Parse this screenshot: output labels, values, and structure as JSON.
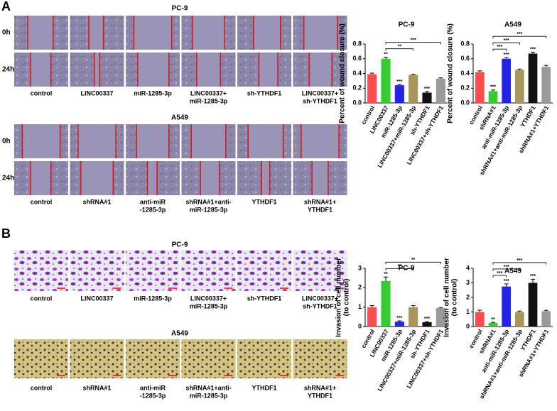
{
  "panels": [
    {
      "label": "A",
      "groups": [
        {
          "title": "PC-9",
          "rows": [
            "0h",
            "24h"
          ],
          "captions": [
            [
              "control"
            ],
            [
              "LINC00337"
            ],
            [
              "miR-1285-3p"
            ],
            [
              "LINC00337+",
              "miR-1285-3p"
            ],
            [
              "sh-YTHDF1"
            ],
            [
              "LINC00337+",
              "sh-YTHDF1"
            ]
          ]
        },
        {
          "title": "A549",
          "rows": [
            "0h",
            "24h"
          ],
          "captions": [
            [
              "control"
            ],
            [
              "shRNA#1"
            ],
            [
              "anti-miR",
              "-1285-3p"
            ],
            [
              "shRNA#1+anti-",
              "miR-1285-3p"
            ],
            [
              "YTHDF1"
            ],
            [
              "shRNA#1+",
              "YTHDF1"
            ]
          ]
        }
      ]
    },
    {
      "label": "B",
      "groups": [
        {
          "title": "PC-9",
          "captions": [
            [
              "control"
            ],
            [
              "LINC00337"
            ],
            [
              "miR-1285-3p"
            ],
            [
              "LINC00337+",
              "miR-1285-3p"
            ],
            [
              "sh-YTHDF1"
            ],
            [
              "LINC00337+",
              "sh-YTHDF1"
            ]
          ]
        },
        {
          "title": "A549",
          "captions": [
            [
              "control"
            ],
            [
              "shRNA#1"
            ],
            [
              "anti-miR",
              "-1285-3p"
            ],
            [
              "shRNA#1+anti-",
              "miR-1285-3p"
            ],
            [
              "YTHDF1"
            ],
            [
              "shRNA#1+",
              "YTHDF1"
            ]
          ]
        }
      ]
    }
  ],
  "chart_data": [
    {
      "type": "bar",
      "title": "PC-9",
      "ylabel": [
        "Percent of wound closure (%)"
      ],
      "categories": [
        "control",
        "LINC00337",
        "miR-1285-3p",
        "LINC00337+miR-1285-3p",
        "sh-YTHDF1",
        "LINC00337+sh-YTHDF1"
      ],
      "values": [
        0.39,
        0.6,
        0.24,
        0.38,
        0.14,
        0.33
      ],
      "errors": [
        0.015,
        0.02,
        0.01,
        0.01,
        0.015,
        0.01
      ],
      "colors": [
        "#ff4d4d",
        "#33cc33",
        "#2323e6",
        "#a8965a",
        "#111111",
        "#9a9a9a"
      ],
      "ylim": [
        0,
        0.8
      ],
      "yticks": [
        {
          "value": 0,
          "label": "0.0"
        },
        0.2,
        0.4,
        0.6,
        0.8
      ],
      "annotations": [
        {
          "category": "LINC00337",
          "text": "**"
        },
        {
          "category": "miR-1285-3p",
          "text": "***"
        },
        {
          "category": "sh-YTHDF1",
          "text": "***"
        }
      ],
      "brackets": [
        {
          "from": "LINC00337",
          "to": "LINC00337+miR-1285-3p",
          "text": "**"
        },
        {
          "from": "LINC00337",
          "to": "LINC00337+sh-YTHDF1",
          "text": "***"
        }
      ]
    },
    {
      "type": "bar",
      "title": "A549",
      "ylabel": [
        "Percent of wound closure (%)"
      ],
      "categories": [
        "control",
        "shRNA#1",
        "anti-miR-1285-3p",
        "shRNA#1+anti-miR-1285-3p",
        "YTHDF1",
        "shRNA#1+YTHDF1"
      ],
      "values": [
        0.42,
        0.16,
        0.6,
        0.45,
        0.67,
        0.49
      ],
      "errors": [
        0.015,
        0.015,
        0.015,
        0.01,
        0.02,
        0.02
      ],
      "colors": [
        "#ff4d4d",
        "#33cc33",
        "#2323e6",
        "#a8965a",
        "#111111",
        "#9a9a9a"
      ],
      "ylim": [
        0,
        0.8
      ],
      "yticks": [
        {
          "value": 0,
          "label": "0.0"
        },
        0.2,
        0.4,
        0.6,
        0.8
      ],
      "annotations": [
        {
          "category": "shRNA#1",
          "text": "***"
        },
        {
          "category": "anti-miR-1285-3p",
          "text": "***"
        },
        {
          "category": "YTHDF1",
          "text": "***"
        }
      ],
      "brackets": [
        {
          "from": "shRNA#1",
          "to": "anti-miR-1285-3p",
          "text": "***"
        },
        {
          "from": "shRNA#1",
          "to": "shRNA#1+anti-miR-1285-3p",
          "text": "***"
        },
        {
          "from": "shRNA#1",
          "to": "shRNA#1+YTHDF1",
          "text": "***"
        }
      ]
    },
    {
      "type": "bar",
      "title": "PC-9",
      "ylabel": [
        "Invasion of cell number",
        "(to control)"
      ],
      "categories": [
        "control",
        "LINC00337",
        "miR-1285-3p",
        "LINC00337+miR-1285-3p",
        "sh-YTHDF1",
        "LINC00337+sh-YTHDF1"
      ],
      "values": [
        1.0,
        2.35,
        0.25,
        1.0,
        0.22,
        0.95
      ],
      "errors": [
        0.08,
        0.2,
        0.04,
        0.08,
        0.03,
        0.03
      ],
      "colors": [
        "#ff4d4d",
        "#33cc33",
        "#2323e6",
        "#a8965a",
        "#111111",
        "#9a9a9a"
      ],
      "ylim": [
        0,
        3
      ],
      "yticks": [
        0,
        1,
        2,
        3
      ],
      "annotations": [
        {
          "category": "LINC00337",
          "text": "**"
        },
        {
          "category": "miR-1285-3p",
          "text": "***"
        },
        {
          "category": "sh-YTHDF1",
          "text": "***"
        }
      ],
      "brackets": [
        {
          "from": "LINC00337",
          "to": "LINC00337+miR-1285-3p",
          "text": "**"
        },
        {
          "from": "LINC00337",
          "to": "LINC00337+sh-YTHDF1",
          "text": "**"
        }
      ]
    },
    {
      "type": "bar",
      "title": "A549",
      "ylabel": [
        "Invasion of cell number",
        "(to control)"
      ],
      "categories": [
        "control",
        "shRNA#1",
        "anti-miR-1285-3p",
        "shRNA#1+anti-miR-1285-3p",
        "YTHDF1",
        "shRNA#1+YTHDF1"
      ],
      "values": [
        1.0,
        0.25,
        2.75,
        1.0,
        3.0,
        1.05
      ],
      "errors": [
        0.12,
        0.04,
        0.18,
        0.06,
        0.25,
        0.06
      ],
      "colors": [
        "#ff4d4d",
        "#33cc33",
        "#2323e6",
        "#a8965a",
        "#111111",
        "#9a9a9a"
      ],
      "ylim": [
        0,
        4
      ],
      "yticks": [
        0,
        1,
        2,
        3,
        4
      ],
      "annotations": [
        {
          "category": "shRNA#1",
          "text": "**"
        },
        {
          "category": "anti-miR-1285-3p",
          "text": "***"
        },
        {
          "category": "YTHDF1",
          "text": "***"
        }
      ],
      "brackets": [
        {
          "from": "shRNA#1",
          "to": "anti-miR-1285-3p",
          "text": "***"
        },
        {
          "from": "shRNA#1",
          "to": "shRNA#1+anti-miR-1285-3p",
          "text": "***"
        },
        {
          "from": "shRNA#1",
          "to": "shRNA#1+YTHDF1",
          "text": "***"
        }
      ]
    }
  ]
}
